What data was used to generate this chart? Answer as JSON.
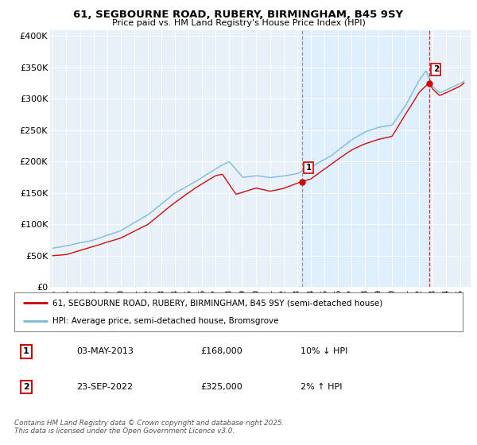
{
  "title": "61, SEGBOURNE ROAD, RUBERY, BIRMINGHAM, B45 9SY",
  "subtitle": "Price paid vs. HM Land Registry's House Price Index (HPI)",
  "yticks": [
    0,
    50000,
    100000,
    150000,
    200000,
    250000,
    300000,
    350000,
    400000
  ],
  "ytick_labels": [
    "£0",
    "£50K",
    "£100K",
    "£150K",
    "£200K",
    "£250K",
    "£300K",
    "£350K",
    "£400K"
  ],
  "ylim": [
    0,
    410000
  ],
  "xlim_start": 1994.8,
  "xlim_end": 2025.8,
  "hpi_color": "#7ab8d9",
  "price_color": "#cc0000",
  "marker1_x": 2013.35,
  "marker1_y": 168000,
  "marker2_x": 2022.73,
  "marker2_y": 325000,
  "shade_color": "#ddeeff",
  "legend_label1": "61, SEGBOURNE ROAD, RUBERY, BIRMINGHAM, B45 9SY (semi-detached house)",
  "legend_label2": "HPI: Average price, semi-detached house, Bromsgrove",
  "transaction1_num": "1",
  "transaction1_date": "03-MAY-2013",
  "transaction1_price": "£168,000",
  "transaction1_hpi": "10% ↓ HPI",
  "transaction2_num": "2",
  "transaction2_date": "23-SEP-2022",
  "transaction2_price": "£325,000",
  "transaction2_hpi": "2% ↑ HPI",
  "footer": "Contains HM Land Registry data © Crown copyright and database right 2025.\nThis data is licensed under the Open Government Licence v3.0.",
  "plot_bg_color": "#e8f0f8"
}
